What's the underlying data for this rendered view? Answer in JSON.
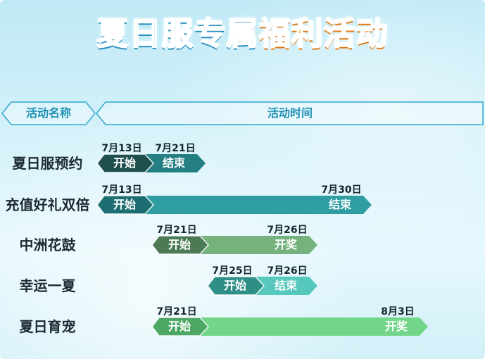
{
  "title": {
    "part1": "夏日服专属",
    "part2": "福利活动"
  },
  "header": {
    "name_col": "活动名称",
    "time_col": "活动时间"
  },
  "rows": [
    {
      "name": "夏日服预约",
      "start_date": "7月13日",
      "end_date": "7月21日",
      "start_label": "开始",
      "end_label": "结束",
      "start_day": 13,
      "end_day": 21,
      "color_start": "#1f4f4f",
      "color_end": "#237f82"
    },
    {
      "name": "充值好礼双倍",
      "start_date": "7月13日",
      "end_date": "7月30日",
      "start_label": "开始",
      "end_label": "结束",
      "start_day": 13,
      "end_day": 30,
      "color_start": "#1d6e72",
      "color_end": "#2f9ea3"
    },
    {
      "name": "中洲花鼓",
      "start_date": "7月21日",
      "end_date": "7月26日",
      "start_label": "开始",
      "end_label": "开奖",
      "start_day": 21,
      "end_day": 26,
      "color_start": "#4c7a55",
      "color_end": "#76b27e"
    },
    {
      "name": "幸运一夏",
      "start_date": "7月25日",
      "end_date": "7月26日",
      "start_label": "开始",
      "end_label": "结束",
      "start_day": 25,
      "end_day": 26,
      "color_start": "#2e8f86",
      "color_end": "#56c8bd"
    },
    {
      "name": "夏日育宠",
      "start_date": "7月21日",
      "end_date": "8月3日",
      "start_label": "开始",
      "end_label": "开奖",
      "start_day": 21,
      "end_day": 34,
      "color_start": "#4da765",
      "color_end": "#72d589"
    }
  ]
}
